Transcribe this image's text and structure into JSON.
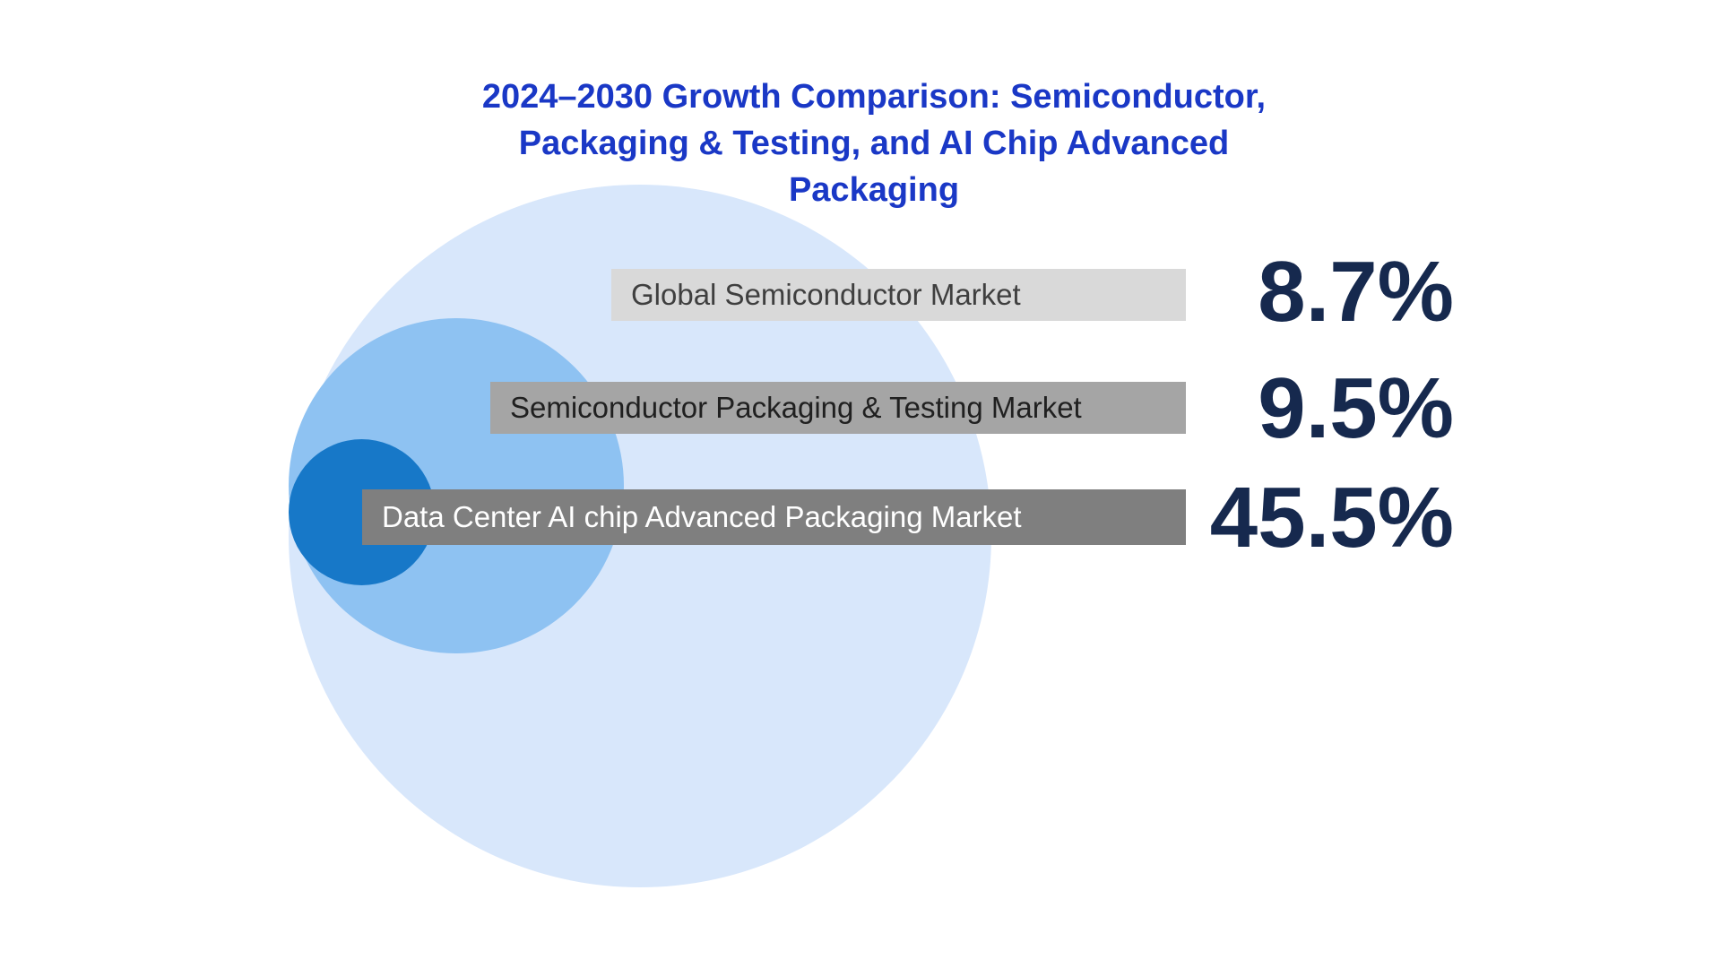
{
  "title": {
    "line1": "2024–2030 Growth Comparison: Semiconductor,",
    "line2": "Packaging & Testing, and AI Chip Advanced Packaging",
    "color": "#1A38C6"
  },
  "chart_data": {
    "type": "bubble",
    "title": "2024–2030 Growth Comparison: Semiconductor, Packaging & Testing, and AI Chip Advanced Packaging",
    "subtitle": "",
    "legend_position": "none",
    "background": "#FFFFFF",
    "value_color": "#16294E",
    "note": "Nested proportional circles, left-tangent aligned; each circle sized by market growth scope with CAGR value labels at right",
    "series": [
      {
        "name": "Global Semiconductor Market",
        "cagr_pct": 8.7,
        "value_label": "8.7%",
        "circle_color": "#D8E7FB",
        "label_bg": "#D9D9D9",
        "label_text_color": "#3F3F3F"
      },
      {
        "name": "Semiconductor Packaging & Testing Market",
        "cagr_pct": 9.5,
        "value_label": "9.5%",
        "circle_color": "#8EC2F2",
        "label_bg": "#A5A5A5",
        "label_text_color": "#202020"
      },
      {
        "name": "Data Center AI chip Advanced Packaging Market",
        "cagr_pct": 45.5,
        "value_label": "45.5%",
        "circle_color": "#1778C8",
        "label_bg": "#7F7F7F",
        "label_text_color": "#FFFFFF"
      }
    ]
  }
}
